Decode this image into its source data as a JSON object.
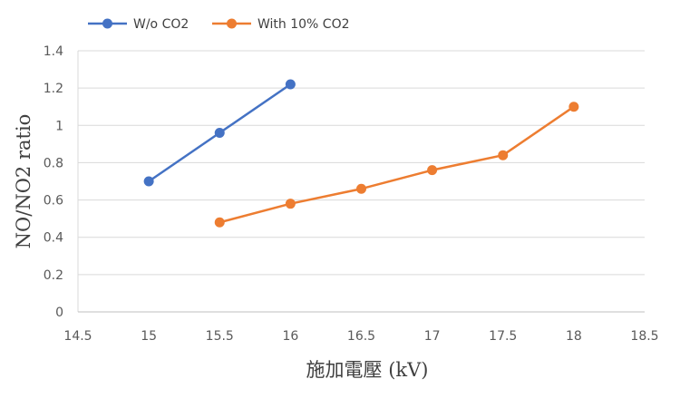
{
  "chart_data": {
    "type": "line",
    "title": "",
    "xlabel": "施加電壓 (kV)",
    "ylabel": "NO/NO2 ratio",
    "xlim": [
      14.5,
      18.5
    ],
    "ylim": [
      0,
      1.4
    ],
    "xticks": [
      "14.5",
      "15",
      "15.5",
      "16",
      "16.5",
      "17",
      "17.5",
      "18",
      "18.5"
    ],
    "yticks": [
      "0",
      "0.2",
      "0.4",
      "0.6",
      "0.8",
      "1",
      "1.2",
      "1.4"
    ],
    "grid": "horizontal",
    "legend_position": "top-left",
    "series": [
      {
        "name": "W/o CO2",
        "color": "#4472C4",
        "x": [
          15,
          15.5,
          16
        ],
        "y": [
          0.7,
          0.96,
          1.22
        ]
      },
      {
        "name": "With 10% CO2",
        "color": "#ED7D31",
        "x": [
          15.5,
          16,
          16.5,
          17,
          17.5,
          18
        ],
        "y": [
          0.48,
          0.58,
          0.66,
          0.76,
          0.84,
          1.1
        ]
      }
    ]
  }
}
